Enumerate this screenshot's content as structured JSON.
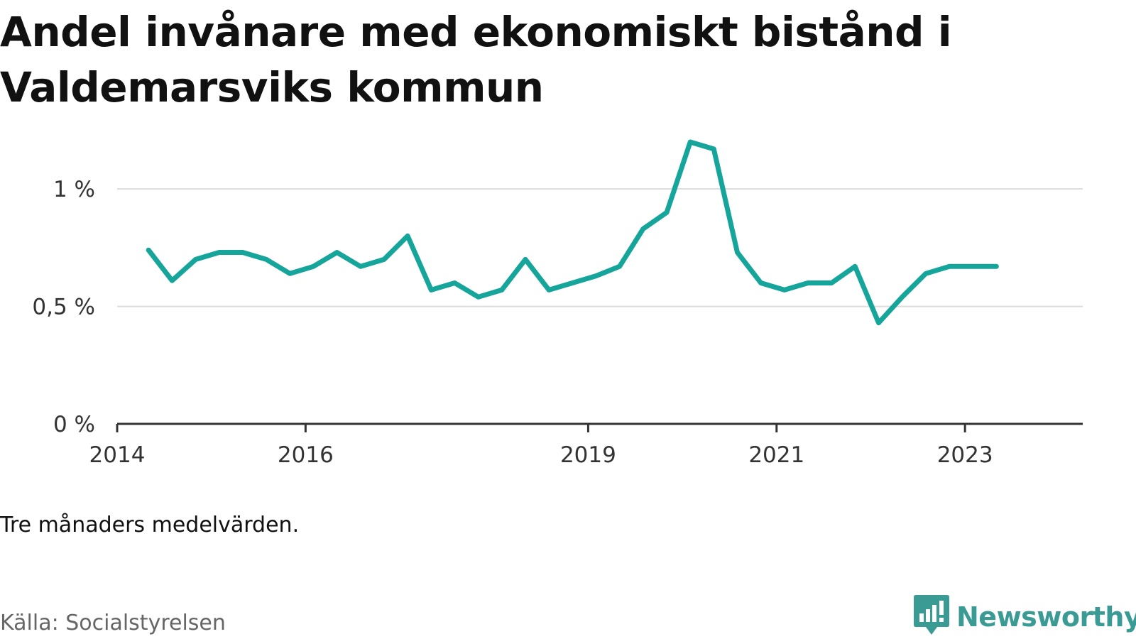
{
  "title": "Andel invånare med ekonomiskt bistånd i Valdemarsviks kommun",
  "note": "Tre månaders medelvärden.",
  "source": "Källa: Socialstyrelsen",
  "brand": {
    "name": "Newsworthy",
    "icon": "newsworthy-logo-icon",
    "color": "#3a9a94"
  },
  "colors": {
    "line": "#16a59b",
    "grid": "#dddddd",
    "axis": "#333333"
  },
  "chart_data": {
    "type": "line",
    "title": "Andel invånare med ekonomiskt bistånd i Valdemarsviks kommun",
    "xlabel": "",
    "ylabel": "",
    "ylim": [
      0,
      1.2
    ],
    "y_ticks": [
      {
        "value": 0,
        "label": "0 %"
      },
      {
        "value": 0.5,
        "label": "0,5 %"
      },
      {
        "value": 1,
        "label": "1 %"
      }
    ],
    "x_range": [
      2014.0,
      2024.25
    ],
    "x_ticks": [
      {
        "value": 2014,
        "label": "2014"
      },
      {
        "value": 2016,
        "label": "2016"
      },
      {
        "value": 2019,
        "label": "2019"
      },
      {
        "value": 2021,
        "label": "2021"
      },
      {
        "value": 2023,
        "label": "2023"
      }
    ],
    "grid": true,
    "legend": "none",
    "series": [
      {
        "x": [
          "2014-05",
          "2014-08",
          "2014-11",
          "2015-02",
          "2015-05",
          "2015-08",
          "2015-11",
          "2016-02",
          "2016-05",
          "2016-08",
          "2016-11",
          "2017-02",
          "2017-05",
          "2017-08",
          "2017-11",
          "2018-02",
          "2018-05",
          "2018-08",
          "2018-11",
          "2019-02",
          "2019-05",
          "2019-08",
          "2019-11",
          "2020-02",
          "2020-05",
          "2020-08",
          "2020-11",
          "2021-02",
          "2021-05",
          "2021-08",
          "2021-11",
          "2022-02",
          "2022-05",
          "2022-08",
          "2022-11",
          "2023-02",
          "2023-05"
        ],
        "values": [
          0.74,
          0.61,
          0.7,
          0.73,
          0.73,
          0.7,
          0.64,
          0.67,
          0.73,
          0.67,
          0.7,
          0.8,
          0.57,
          0.6,
          0.54,
          0.57,
          0.7,
          0.57,
          0.6,
          0.63,
          0.67,
          0.83,
          0.9,
          1.2,
          1.17,
          0.73,
          0.6,
          0.57,
          0.6,
          0.6,
          0.67,
          0.43,
          0.54,
          0.64,
          0.67,
          0.67,
          0.67
        ]
      }
    ]
  }
}
